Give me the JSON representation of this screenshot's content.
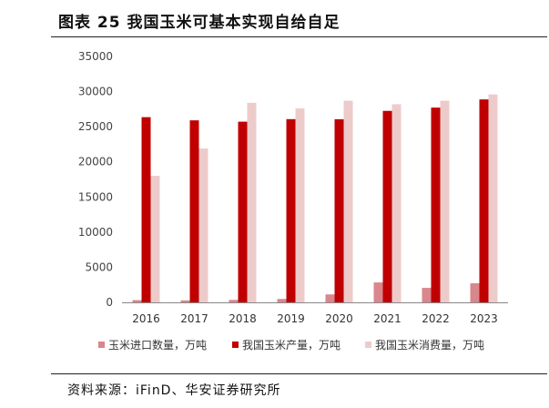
{
  "title": "图表 25 我国玉米可基本实现自给自足",
  "source": "资料来源：iFinD、华安证券研究所",
  "chart_data": {
    "type": "bar",
    "categories": [
      "2016",
      "2017",
      "2018",
      "2019",
      "2020",
      "2021",
      "2022",
      "2023"
    ],
    "ylim": [
      0,
      35000
    ],
    "yticks": [
      0,
      5000,
      10000,
      15000,
      20000,
      25000,
      30000,
      35000
    ],
    "legend_position": "bottom",
    "grid": false,
    "series": [
      {
        "name": "玉米进口数量，万吨",
        "color": "#d9868c",
        "values": [
          317,
          283,
          352,
          479,
          1130,
          2835,
          2062,
          2714
        ]
      },
      {
        "name": "我国玉米产量，万吨",
        "color": "#c00000",
        "values": [
          26361,
          25907,
          25717,
          26078,
          26067,
          27255,
          27720,
          28884
        ]
      },
      {
        "name": "我国玉米消费量，万吨",
        "color": "#eecbcb",
        "values": [
          18000,
          21900,
          28400,
          27600,
          28700,
          28200,
          28700,
          29600
        ]
      }
    ]
  }
}
